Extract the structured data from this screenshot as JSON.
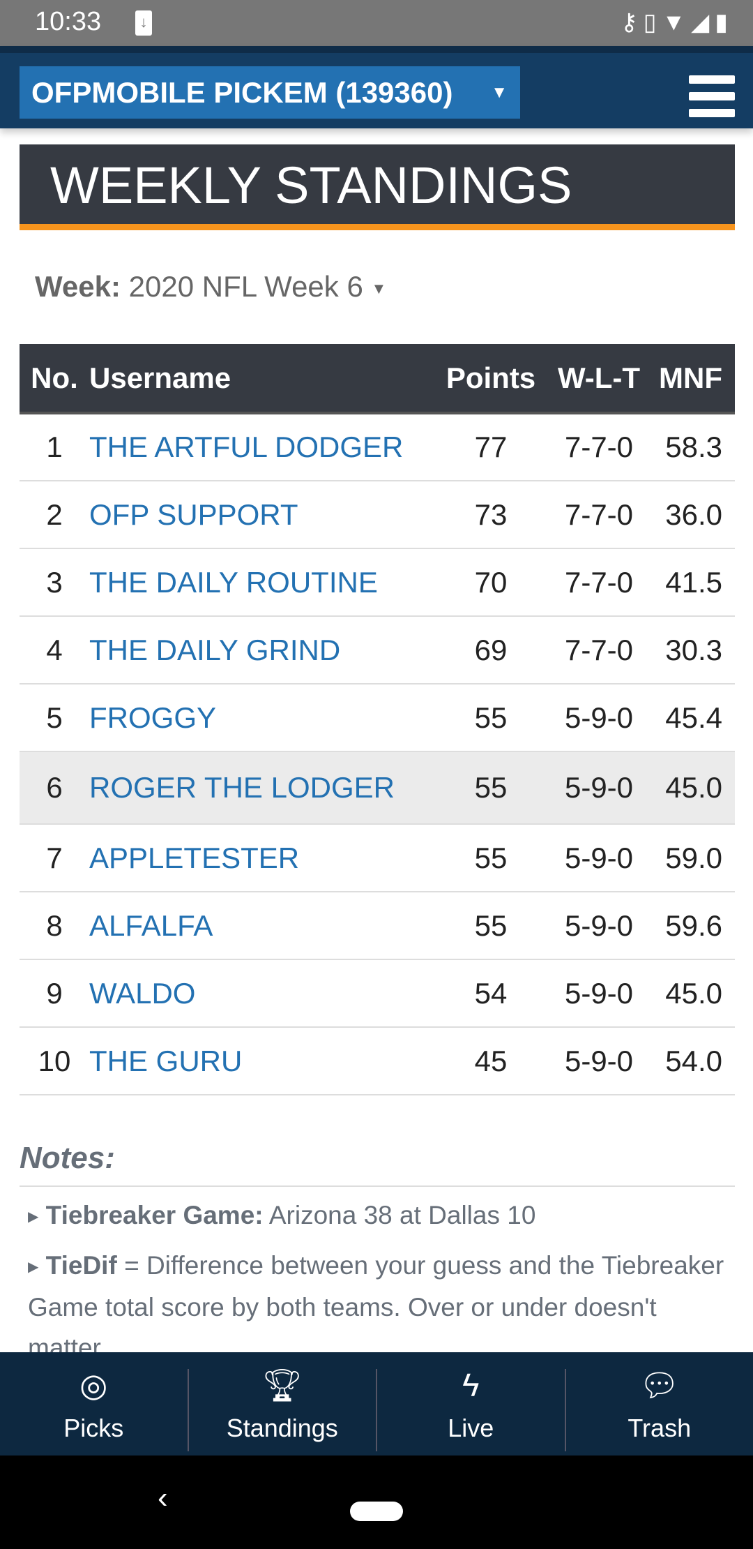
{
  "status": {
    "time": "10:33"
  },
  "header": {
    "league": "OFPMOBILE PICKEM (139360)"
  },
  "page_title": "WEEKLY STANDINGS",
  "week": {
    "label": "Week:",
    "value": "2020 NFL Week 6"
  },
  "table": {
    "headers": [
      "No.",
      "Username",
      "Points",
      "W-L-T",
      "MNF"
    ],
    "rows": [
      {
        "no": "1",
        "user": "THE ARTFUL DODGER",
        "points": "77",
        "wlt": "7-7-0",
        "mnf": "58.3"
      },
      {
        "no": "2",
        "user": "OFP SUPPORT",
        "points": "73",
        "wlt": "7-7-0",
        "mnf": "36.0"
      },
      {
        "no": "3",
        "user": "THE DAILY ROUTINE",
        "points": "70",
        "wlt": "7-7-0",
        "mnf": "41.5"
      },
      {
        "no": "4",
        "user": "THE DAILY GRIND",
        "points": "69",
        "wlt": "7-7-0",
        "mnf": "30.3"
      },
      {
        "no": "5",
        "user": "FROGGY",
        "points": "55",
        "wlt": "5-9-0",
        "mnf": "45.4"
      },
      {
        "no": "6",
        "user": "ROGER THE LODGER",
        "points": "55",
        "wlt": "5-9-0",
        "mnf": "45.0"
      },
      {
        "no": "7",
        "user": "APPLETESTER",
        "points": "55",
        "wlt": "5-9-0",
        "mnf": "59.0"
      },
      {
        "no": "8",
        "user": "ALFALFA",
        "points": "55",
        "wlt": "5-9-0",
        "mnf": "59.6"
      },
      {
        "no": "9",
        "user": "WALDO",
        "points": "54",
        "wlt": "5-9-0",
        "mnf": "45.0"
      },
      {
        "no": "10",
        "user": "THE GURU",
        "points": "45",
        "wlt": "5-9-0",
        "mnf": "54.0"
      }
    ]
  },
  "notes": {
    "title": "Notes:",
    "items": [
      {
        "label": "Tiebreaker Game:",
        "text": " Arizona 38 at Dallas 10"
      },
      {
        "label": "TieDif",
        "text": " = Difference between your guess and the Tiebreaker Game total score by both teams. Over or under doesn't matter."
      }
    ]
  },
  "bottom_nav": [
    {
      "label": "Picks",
      "icon": "target-icon"
    },
    {
      "label": "Standings",
      "icon": "trophy-icon"
    },
    {
      "label": "Live",
      "icon": "lightning-icon"
    },
    {
      "label": "Trash",
      "icon": "chat-icon"
    }
  ],
  "colors": {
    "header": "#143d63",
    "accent": "#2371b2",
    "title_bg": "#363a42",
    "orange": "#f7941d"
  }
}
